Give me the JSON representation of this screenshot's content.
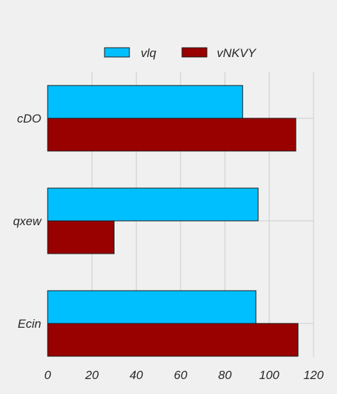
{
  "colors": {
    "background": "#f0f0f0",
    "grid": "#cbcbcb",
    "edge": "#1a1a1a",
    "text": "#262626"
  },
  "chart_data": {
    "type": "bar",
    "orientation": "horizontal",
    "title": "",
    "xlabel": "",
    "ylabel": "",
    "categories": [
      "cDO",
      "qxew",
      "Ecin"
    ],
    "xlim": [
      0,
      120
    ],
    "xticks": [
      0,
      20,
      40,
      60,
      80,
      100,
      120
    ],
    "grid": true,
    "legend": {
      "position": "top-center",
      "columns": 2
    },
    "series": [
      {
        "name": "vlq",
        "color": "#00bfff",
        "values": [
          88,
          95,
          94
        ]
      },
      {
        "name": "vNKVY",
        "color": "#990000",
        "values": [
          112,
          30,
          113
        ]
      }
    ]
  }
}
